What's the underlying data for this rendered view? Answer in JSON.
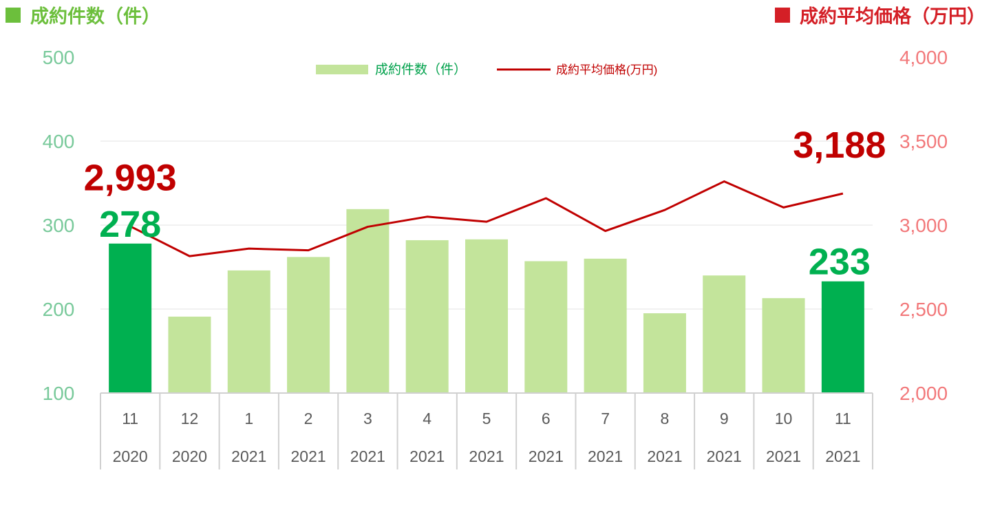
{
  "header": {
    "left_title": "成約件数（件）",
    "right_title": "成約平均価格（万円）",
    "left_color": "#6cbf3c",
    "right_color": "#d41f26"
  },
  "colors": {
    "bar": "#c3e49b",
    "bar_highlight": "#00b050",
    "line": "#c00000",
    "left_axis": "#78c99a",
    "right_axis": "#f2787a",
    "grid": "#e3e3e3",
    "category_text": "#595959"
  },
  "chart_data": {
    "type": "bar",
    "categories": [
      {
        "month": "11",
        "year": "2020"
      },
      {
        "month": "12",
        "year": "2020"
      },
      {
        "month": "1",
        "year": "2021"
      },
      {
        "month": "2",
        "year": "2021"
      },
      {
        "month": "3",
        "year": "2021"
      },
      {
        "month": "4",
        "year": "2021"
      },
      {
        "month": "5",
        "year": "2021"
      },
      {
        "month": "6",
        "year": "2021"
      },
      {
        "month": "7",
        "year": "2021"
      },
      {
        "month": "8",
        "year": "2021"
      },
      {
        "month": "9",
        "year": "2021"
      },
      {
        "month": "10",
        "year": "2021"
      },
      {
        "month": "11",
        "year": "2021"
      }
    ],
    "series": [
      {
        "name": "成約件数（件）",
        "type": "bar",
        "axis": "left",
        "values": [
          278,
          191,
          246,
          262,
          319,
          282,
          283,
          257,
          260,
          195,
          240,
          213,
          233
        ],
        "highlight_indices": [
          0,
          12
        ]
      },
      {
        "name": "成約平均価格(万円)",
        "type": "line",
        "axis": "right",
        "values": [
          2993,
          2815,
          2860,
          2850,
          2990,
          3050,
          3020,
          3160,
          2965,
          3090,
          3260,
          3105,
          3188
        ]
      }
    ],
    "left_axis": {
      "min": 100,
      "max": 500,
      "ticks": [
        "100",
        "200",
        "300",
        "400",
        "500"
      ]
    },
    "right_axis": {
      "min": 2000,
      "max": 4000,
      "ticks": [
        "2,000",
        "2,500",
        "3,000",
        "3,500",
        "4,000"
      ]
    },
    "annotations": [
      {
        "text": "2,993",
        "series": "line",
        "index": 0
      },
      {
        "text": "278",
        "series": "bar",
        "index": 0
      },
      {
        "text": "3,188",
        "series": "line",
        "index": 12
      },
      {
        "text": "233",
        "series": "bar",
        "index": 12
      }
    ],
    "legend_position": "top",
    "grid": true
  }
}
